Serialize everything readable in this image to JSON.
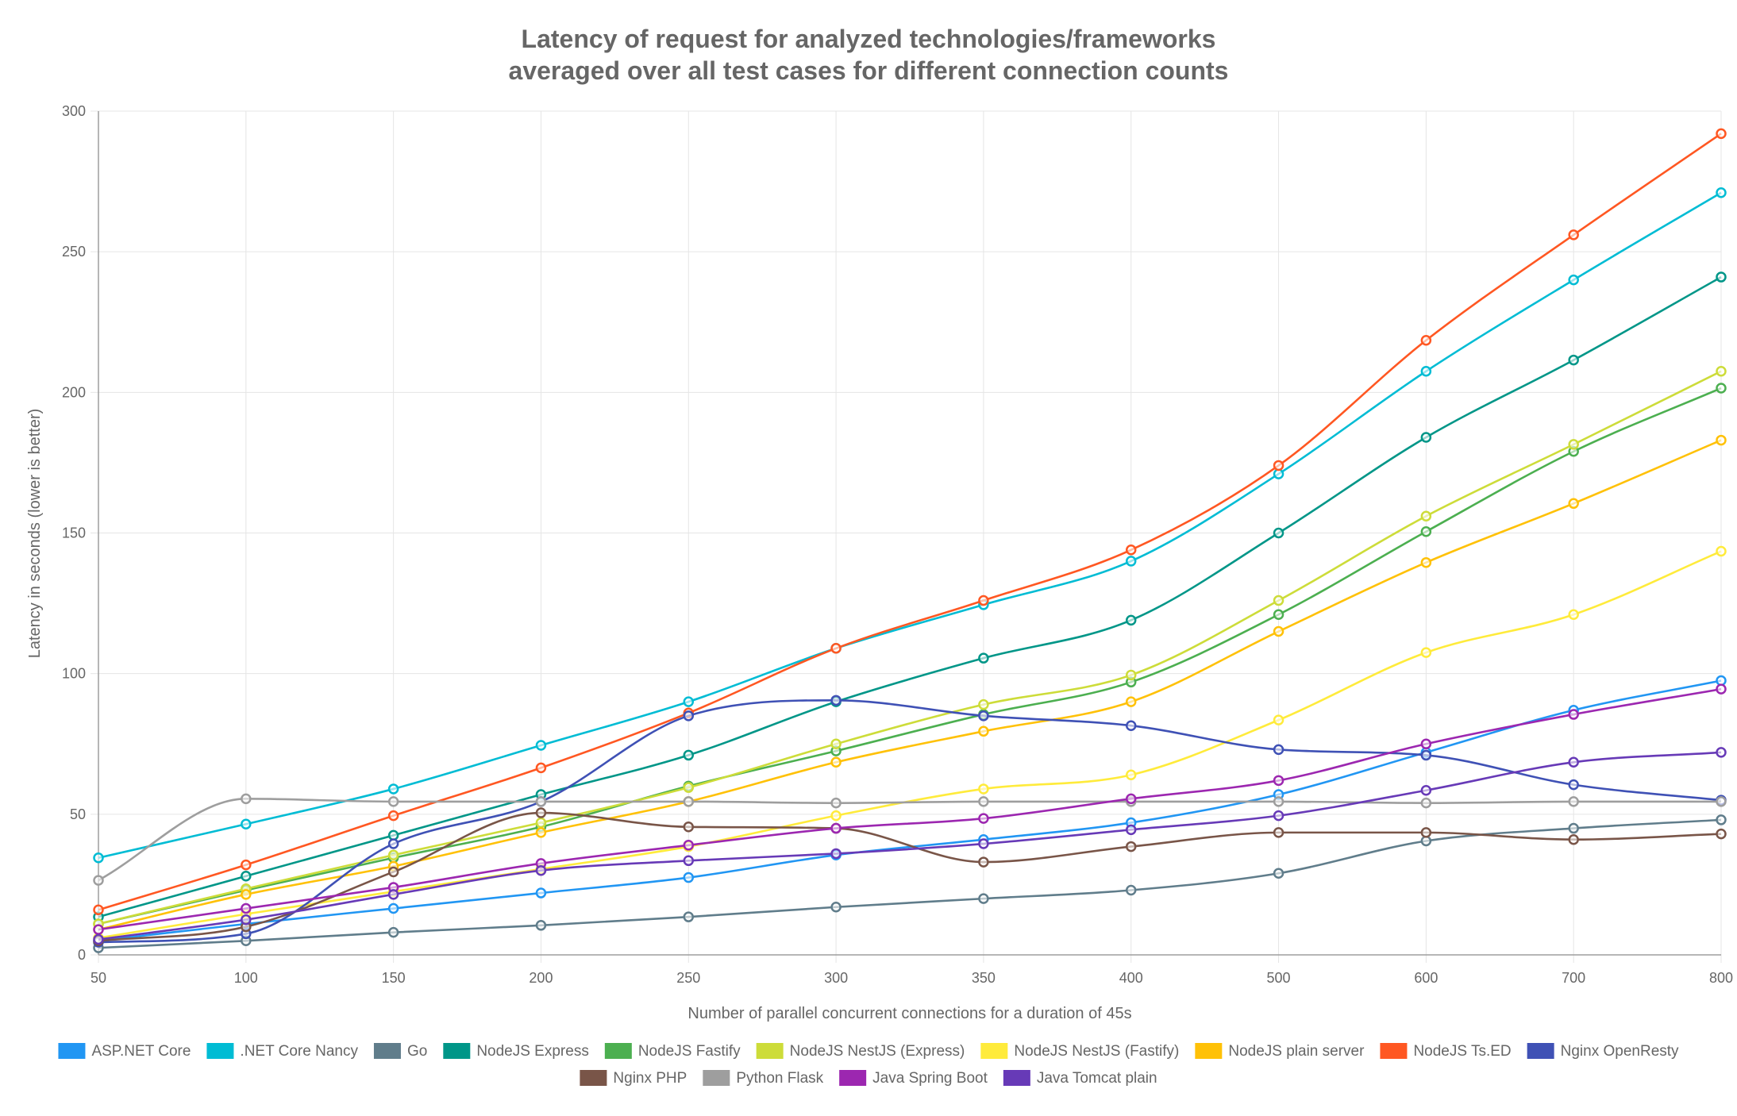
{
  "chart_data": {
    "type": "line",
    "title": [
      "Latency of request for analyzed technologies/frameworks",
      "averaged over all test cases for different connection counts"
    ],
    "xlabel": "Number of parallel concurrent connections for a duration of 45s",
    "ylabel": "Latency in seconds (lower is better)",
    "categories": [
      "50",
      "100",
      "150",
      "200",
      "250",
      "300",
      "350",
      "400",
      "500",
      "600",
      "700",
      "800"
    ],
    "ylim": [
      0,
      300
    ],
    "yticks": [
      0,
      50,
      100,
      150,
      200,
      250,
      300
    ],
    "grid": true,
    "legend_position": "bottom",
    "series": [
      {
        "name": "ASP.NET Core",
        "color": "#2196F3",
        "values": [
          5,
          11,
          16.5,
          22,
          27.5,
          35.5,
          41,
          47,
          57,
          72,
          87,
          97.5
        ]
      },
      {
        "name": ".NET Core Nancy",
        "color": "#00BCD4",
        "values": [
          34.5,
          46.5,
          59,
          74.5,
          90,
          109,
          124.5,
          140,
          171,
          207.5,
          240,
          271
        ]
      },
      {
        "name": "Go",
        "color": "#607D8B",
        "values": [
          2.5,
          5,
          8,
          10.5,
          13.5,
          17,
          20,
          23,
          29,
          40.5,
          45,
          48
        ]
      },
      {
        "name": "NodeJS Express",
        "color": "#009688",
        "values": [
          13.5,
          28,
          42.5,
          57,
          71,
          90,
          105.5,
          119,
          150,
          184,
          211.5,
          241
        ]
      },
      {
        "name": "NodeJS Fastify",
        "color": "#4CAF50",
        "values": [
          11,
          23,
          34.5,
          45.5,
          60,
          72.5,
          85.5,
          97,
          121,
          150.5,
          179,
          201.5
        ]
      },
      {
        "name": "NodeJS NestJS (Express)",
        "color": "#CDDC39",
        "values": [
          11,
          23.5,
          35.5,
          47,
          59.5,
          75,
          89,
          99.5,
          126,
          156,
          181.5,
          207.5
        ]
      },
      {
        "name": "NodeJS NestJS (Fastify)",
        "color": "#FFEB3B",
        "values": [
          6,
          14.5,
          22.5,
          30.5,
          38.5,
          49.5,
          59,
          64,
          83.5,
          107.5,
          121,
          143.5
        ]
      },
      {
        "name": "NodeJS plain server",
        "color": "#FFC107",
        "values": [
          9,
          21.5,
          31.5,
          43.5,
          54.5,
          68.5,
          79.5,
          90,
          115,
          139.5,
          160.5,
          183
        ]
      },
      {
        "name": "NodeJS Ts.ED",
        "color": "#FF5722",
        "values": [
          16,
          32,
          49.5,
          66.5,
          86,
          109,
          126,
          144,
          174,
          218.5,
          256,
          292
        ]
      },
      {
        "name": "Nginx OpenResty",
        "color": "#3F51B5",
        "values": [
          4.5,
          7.5,
          39.5,
          54.5,
          85,
          90.5,
          85,
          81.5,
          73,
          71,
          60.5,
          55
        ]
      },
      {
        "name": "Nginx PHP",
        "color": "#795548",
        "values": [
          5,
          10,
          29.5,
          50.5,
          45.5,
          45,
          33,
          38.5,
          43.5,
          43.5,
          41,
          43
        ]
      },
      {
        "name": "Python Flask",
        "color": "#9E9E9E",
        "values": [
          26.5,
          55.5,
          54.5,
          54.5,
          54.5,
          54,
          54.5,
          54.5,
          54.5,
          54,
          54.5,
          54.5
        ]
      },
      {
        "name": "Java Spring Boot",
        "color": "#9C27B0",
        "values": [
          9,
          16.5,
          24,
          32.5,
          39,
          45,
          48.5,
          55.5,
          62,
          75,
          85.5,
          94.5
        ]
      },
      {
        "name": "Java Tomcat plain",
        "color": "#673AB7",
        "values": [
          5.5,
          12.5,
          21.5,
          30,
          33.5,
          36,
          39.5,
          44.5,
          49.5,
          58.5,
          68.5,
          72
        ]
      }
    ]
  }
}
